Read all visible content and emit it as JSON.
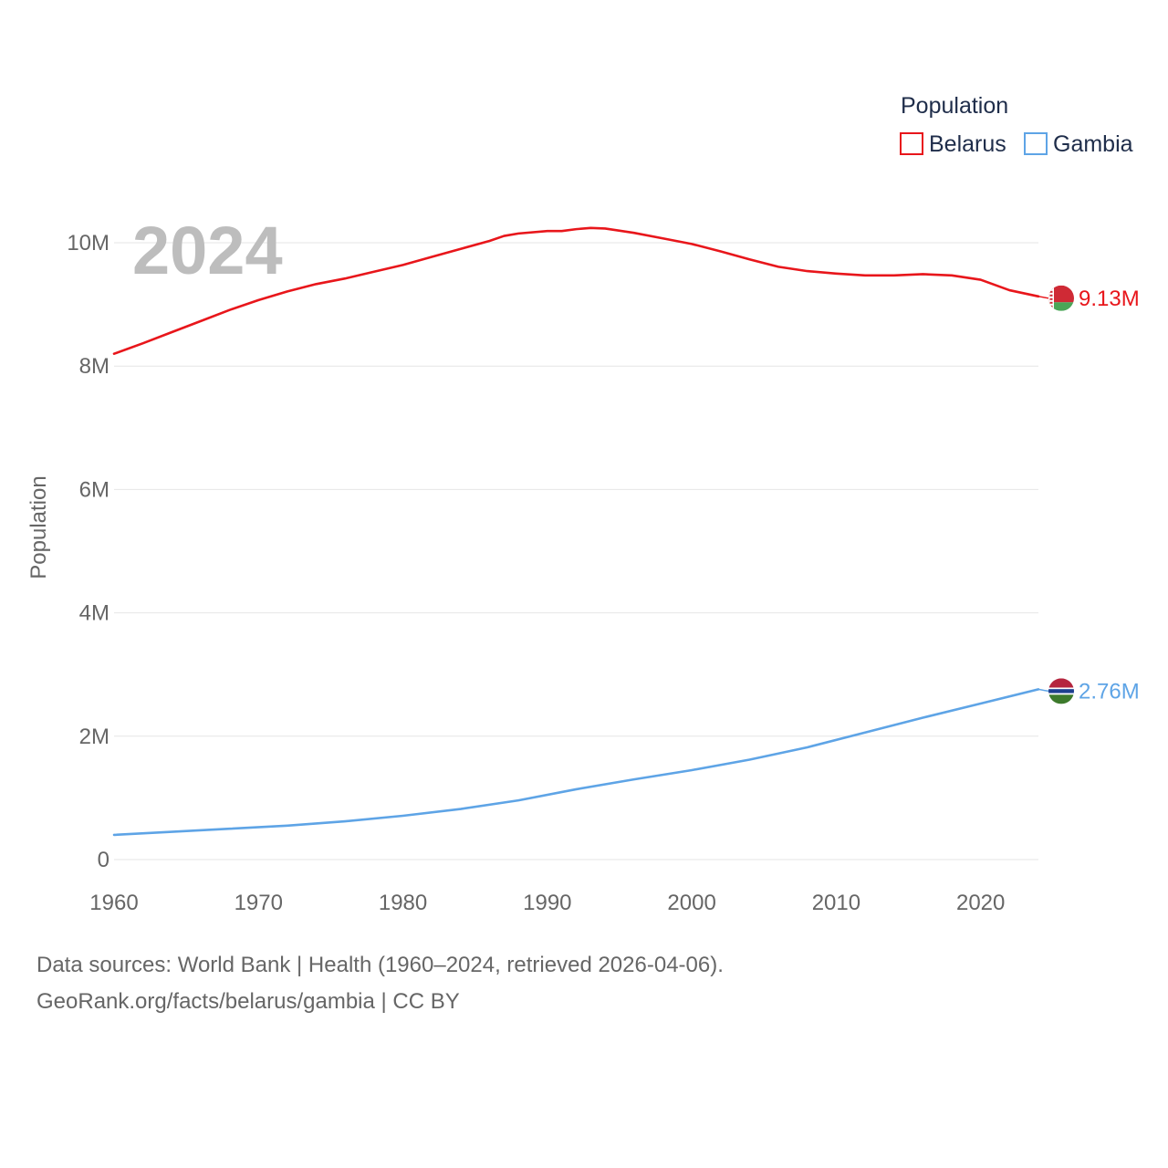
{
  "chart_data": {
    "type": "line",
    "title": "",
    "year_label": "2024",
    "ylabel": "Population",
    "xlabel": "",
    "xlim": [
      1960,
      2024
    ],
    "ylim": [
      0,
      10000000
    ],
    "x_ticks": [
      1960,
      1970,
      1980,
      1990,
      2000,
      2010,
      2020
    ],
    "y_ticks": [
      {
        "value": 0,
        "label": "0"
      },
      {
        "value": 2000000,
        "label": "2M"
      },
      {
        "value": 4000000,
        "label": "4M"
      },
      {
        "value": 6000000,
        "label": "6M"
      },
      {
        "value": 8000000,
        "label": "8M"
      },
      {
        "value": 10000000,
        "label": "10M"
      }
    ],
    "grid": true,
    "legend": {
      "title": "Population",
      "position": "top-right"
    },
    "series": [
      {
        "name": "Belarus",
        "color": "#e8161b",
        "end_label": "9.13M",
        "flag": "belarus-flag",
        "x": [
          1960,
          1962,
          1964,
          1966,
          1968,
          1970,
          1972,
          1974,
          1976,
          1978,
          1980,
          1982,
          1984,
          1986,
          1987,
          1988,
          1990,
          1991,
          1992,
          1993,
          1994,
          1996,
          1998,
          2000,
          2002,
          2004,
          2006,
          2008,
          2010,
          2012,
          2014,
          2016,
          2018,
          2020,
          2022,
          2024
        ],
        "values": [
          8200000,
          8370000,
          8550000,
          8730000,
          8910000,
          9070000,
          9210000,
          9330000,
          9420000,
          9530000,
          9640000,
          9770000,
          9900000,
          10030000,
          10110000,
          10150000,
          10190000,
          10190000,
          10220000,
          10240000,
          10230000,
          10160000,
          10070000,
          9980000,
          9860000,
          9730000,
          9610000,
          9540000,
          9500000,
          9470000,
          9470000,
          9490000,
          9470000,
          9400000,
          9230000,
          9130000
        ]
      },
      {
        "name": "Gambia",
        "color": "#5ea4e6",
        "end_label": "2.76M",
        "flag": "gambia-flag",
        "x": [
          1960,
          1964,
          1968,
          1972,
          1976,
          1980,
          1984,
          1988,
          1992,
          1996,
          2000,
          2004,
          2008,
          2012,
          2016,
          2020,
          2024
        ],
        "values": [
          400000,
          450000,
          500000,
          550000,
          620000,
          710000,
          820000,
          960000,
          1140000,
          1300000,
          1450000,
          1620000,
          1820000,
          2060000,
          2300000,
          2530000,
          2760000
        ]
      }
    ]
  },
  "footer": {
    "sources_line": "Data sources: World Bank | Health (1960–2024, retrieved 2026-04-06).",
    "link_line": "GeoRank.org/facts/belarus/gambia | CC BY"
  }
}
